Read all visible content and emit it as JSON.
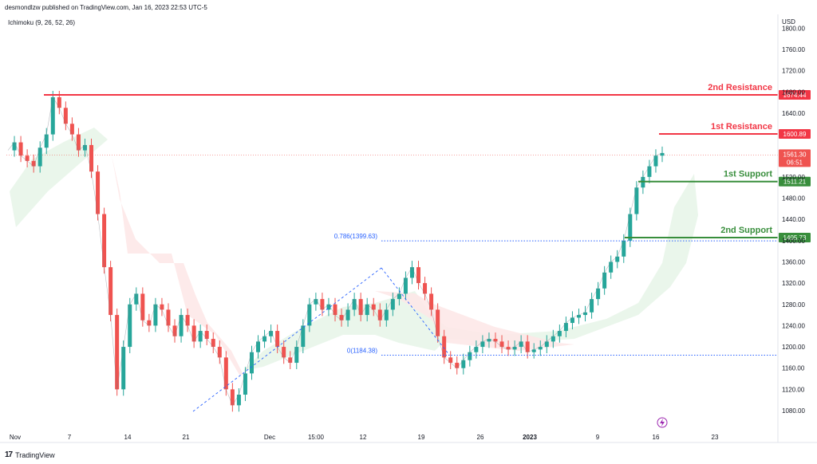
{
  "header": {
    "published": "desmondlzw published on TradingView.com, Jan 16, 2023 22:53 UTC-5"
  },
  "indicator": {
    "label": "Ichimoku (9, 26, 52, 26)"
  },
  "footer": {
    "brand": "TradingView",
    "logo_text": "17"
  },
  "colors": {
    "resistance": "#f23645",
    "support": "#388e3c",
    "fib": "#2962ff",
    "up": "#26a69a",
    "down": "#ef5350",
    "cloud_up": "#e8f5e9",
    "cloud_down": "#fde8e8"
  },
  "chart_data": {
    "type": "line",
    "currency": "USD",
    "ylim": [
      1040,
      1810
    ],
    "y_ticks": [
      {
        "value": 1080,
        "label": "1080.00"
      },
      {
        "value": 1120,
        "label": "1120.00"
      },
      {
        "value": 1160,
        "label": "1160.00"
      },
      {
        "value": 1200,
        "label": "1200.00"
      },
      {
        "value": 1240,
        "label": "1240.00"
      },
      {
        "value": 1280,
        "label": "1280.00"
      },
      {
        "value": 1320,
        "label": "1320.00"
      },
      {
        "value": 1360,
        "label": "1360.00"
      },
      {
        "value": 1400,
        "label": "1400.00"
      },
      {
        "value": 1440,
        "label": "1440.00"
      },
      {
        "value": 1480,
        "label": "1480.00"
      },
      {
        "value": 1520,
        "label": "1520.00"
      },
      {
        "value": 1640,
        "label": "1640.00"
      },
      {
        "value": 1680,
        "label": "1680.00"
      },
      {
        "value": 1720,
        "label": "1720.00"
      },
      {
        "value": 1760,
        "label": "1760.00"
      },
      {
        "value": 1800,
        "label": "1800.00"
      }
    ],
    "x_ticks": [
      "Nov",
      "7",
      "14",
      "21",
      "Dec",
      "15:00",
      "12",
      "19",
      "26",
      "2023",
      "9",
      "16",
      "23"
    ],
    "levels": [
      {
        "name": "2nd Resistance",
        "value": 1674.44,
        "label": "1674.44",
        "kind": "resistance"
      },
      {
        "name": "1st Resistance",
        "value": 1600.89,
        "label": "1600.89",
        "kind": "resistance"
      },
      {
        "name": "1st Support",
        "value": 1511.21,
        "label": "1511.21",
        "kind": "support"
      },
      {
        "name": "2nd Support",
        "value": 1405.73,
        "label": "1405.73",
        "kind": "support"
      }
    ],
    "current_price": {
      "value": 1561.3,
      "label": "1561.30",
      "countdown": "06:51"
    },
    "fib": [
      {
        "label": "0.786(1399.63)",
        "value": 1399.63
      },
      {
        "label": "0(1184.38)",
        "value": 1184.38
      }
    ],
    "price_path": [
      1570,
      1585,
      1560,
      1550,
      1540,
      1575,
      1600,
      1670,
      1650,
      1620,
      1600,
      1570,
      1580,
      1530,
      1450,
      1350,
      1260,
      1120,
      1200,
      1280,
      1300,
      1250,
      1240,
      1280,
      1270,
      1240,
      1220,
      1260,
      1240,
      1210,
      1230,
      1215,
      1200,
      1180,
      1120,
      1090,
      1110,
      1150,
      1190,
      1210,
      1220,
      1230,
      1200,
      1180,
      1170,
      1200,
      1240,
      1280,
      1290,
      1270,
      1280,
      1260,
      1250,
      1270,
      1290,
      1260,
      1280,
      1270,
      1250,
      1270,
      1290,
      1300,
      1330,
      1350,
      1320,
      1300,
      1270,
      1220,
      1180,
      1170,
      1160,
      1175,
      1190,
      1200,
      1210,
      1215,
      1210,
      1200,
      1195,
      1200,
      1210,
      1190,
      1195,
      1200,
      1210,
      1220,
      1230,
      1245,
      1255,
      1260,
      1265,
      1290,
      1310,
      1340,
      1360,
      1370,
      1400,
      1450,
      1500,
      1520,
      1540,
      1560,
      1565
    ]
  }
}
